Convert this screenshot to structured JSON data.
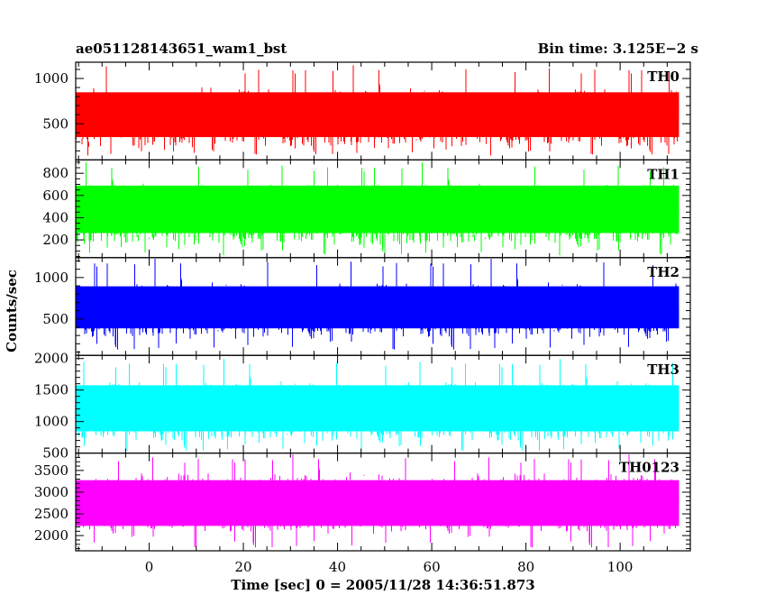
{
  "title_left": "ae051128143651_wam1_bst",
  "title_right": "Bin time: 3.125E−2 s",
  "chart_data": {
    "type": "line",
    "xlabel": "Time [sec] 0 = 2005/11/28 14:36:51.873",
    "ylabel": "Counts/sec",
    "x_range": [
      -15.6,
      114.9
    ],
    "data_x_range": [
      -15.6,
      112.5
    ],
    "x_ticks": [
      0,
      20,
      40,
      60,
      80,
      100
    ],
    "x_tick_labels": [
      "0",
      "20",
      "40",
      "60",
      "80",
      "100"
    ],
    "bin_time": 0.03125,
    "panels": [
      {
        "name": "TH0",
        "color": "#ff0000",
        "ylim": [
          100,
          1180
        ],
        "y_ticks": [
          500,
          1000
        ],
        "y_tick_labels": [
          "500",
          "1000"
        ],
        "minor_step": 100,
        "mean": 560,
        "typical_min": 200,
        "typical_max": 1000,
        "min": 150,
        "max": 1150
      },
      {
        "name": "TH1",
        "color": "#00ff00",
        "ylim": [
          40,
          920
        ],
        "y_ticks": [
          200,
          400,
          600,
          800
        ],
        "y_tick_labels": [
          "200",
          "400",
          "600",
          "800"
        ],
        "minor_step": 50,
        "mean": 420,
        "typical_min": 130,
        "typical_max": 820,
        "min": 60,
        "max": 900
      },
      {
        "name": "TH2",
        "color": "#0000ff",
        "ylim": [
          60,
          1240
        ],
        "y_ticks": [
          500,
          1000
        ],
        "y_tick_labels": [
          "500",
          "1000"
        ],
        "minor_step": 100,
        "mean": 600,
        "typical_min": 230,
        "typical_max": 1050,
        "min": 120,
        "max": 1230
      },
      {
        "name": "TH3",
        "color": "#00ffff",
        "ylim": [
          500,
          2050
        ],
        "y_ticks": [
          500,
          1000,
          1500,
          2000
        ],
        "y_tick_labels": [
          "500",
          "1000",
          "1500",
          "2000"
        ],
        "minor_step": 100,
        "mean": 1150,
        "typical_min": 620,
        "typical_max": 1800,
        "min": 520,
        "max": 2000
      },
      {
        "name": "TH0123",
        "color": "#ff00ff",
        "ylim": [
          1650,
          3900
        ],
        "y_ticks": [
          2000,
          2500,
          3000,
          3500
        ],
        "y_tick_labels": [
          "2000",
          "2500",
          "3000",
          "3500"
        ],
        "minor_step": 100,
        "mean": 2750,
        "typical_min": 1900,
        "typical_max": 3600,
        "min": 1700,
        "max": 3880
      }
    ]
  }
}
